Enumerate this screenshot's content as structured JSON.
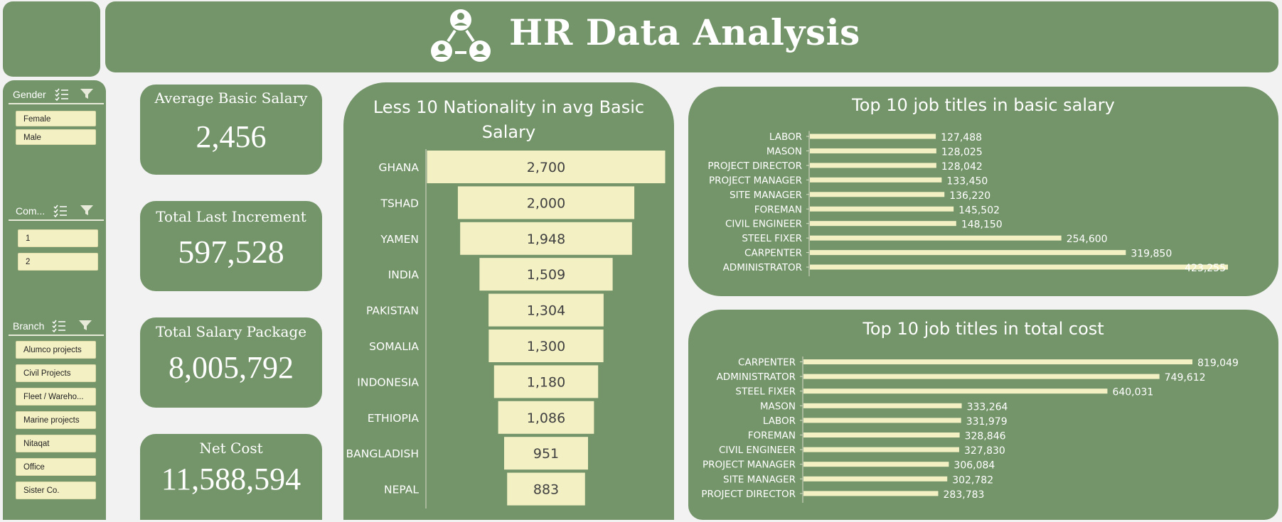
{
  "header": {
    "title": "HR Data Analysis"
  },
  "slicers": {
    "gender": {
      "label": "Gender",
      "items": [
        "Female",
        "Male"
      ]
    },
    "company": {
      "label": "Com...",
      "items": [
        "1",
        "2"
      ]
    },
    "branch": {
      "label": "Branch",
      "items": [
        "Alumco projects",
        "Civil Projects",
        "Fleet / Wareho...",
        "Marine projects",
        "Nitaqat",
        "Office",
        "Sister Co."
      ]
    }
  },
  "kpis": {
    "avg_basic": {
      "label": "Average Basic Salary",
      "value": "2,456"
    },
    "last_increment": {
      "label": "Total Last Increment",
      "value": "597,528"
    },
    "salary_package": {
      "label": "Total Salary Package",
      "value": "8,005,792"
    },
    "net_cost": {
      "label": "Net Cost",
      "value": "11,588,594"
    }
  },
  "colors": {
    "panel": "#74956a",
    "bar": "#f3f0c4",
    "background": "#f2f2f2"
  },
  "chart_data": [
    {
      "type": "bar",
      "subtype": "funnel",
      "title": "Less 10 Nationality in avg Basic Salary",
      "categories": [
        "GHANA",
        "TSHAD",
        "YAMEN",
        "INDIA",
        "PAKISTAN",
        "SOMALIA",
        "INDONESIA",
        "ETHIOPIA",
        "BANGLADISH",
        "NEPAL"
      ],
      "values": [
        2700,
        2000,
        1948,
        1509,
        1304,
        1300,
        1180,
        1086,
        951,
        883
      ],
      "labels": [
        "2,700",
        "2,000",
        "1,948",
        "1,509",
        "1,304",
        "1,300",
        "1,180",
        "1,086",
        "951",
        "883"
      ]
    },
    {
      "type": "bar",
      "orientation": "horizontal",
      "title": "Top 10 job titles in basic salary",
      "categories": [
        "LABOR",
        "MASON",
        "PROJECT DIRECTOR",
        "PROJECT MANAGER",
        "SITE MANAGER",
        "FOREMAN",
        "CIVIL ENGINEER",
        "STEEL FIXER",
        "CARPENTER",
        "ADMINISTRATOR"
      ],
      "values": [
        127488,
        128025,
        128042,
        133450,
        136220,
        145502,
        148150,
        254600,
        319850,
        423255
      ],
      "labels": [
        "127,488",
        "128,025",
        "128,042",
        "133,450",
        "136,220",
        "145,502",
        "148,150",
        "254,600",
        "319,850",
        "423,255"
      ]
    },
    {
      "type": "bar",
      "orientation": "horizontal",
      "title": "Top 10 job titles in total cost",
      "categories": [
        "CARPENTER",
        "ADMINISTRATOR",
        "STEEL FIXER",
        "MASON",
        "LABOR",
        "FOREMAN",
        "CIVIL ENGINEER",
        "PROJECT MANAGER",
        "SITE MANAGER",
        "PROJECT DIRECTOR"
      ],
      "values": [
        819049,
        749612,
        640031,
        333264,
        331979,
        328846,
        327830,
        306084,
        302782,
        283783
      ],
      "labels": [
        "819,049",
        "749,612",
        "640,031",
        "333,264",
        "331,979",
        "328,846",
        "327,830",
        "306,084",
        "302,782",
        "283,783"
      ]
    }
  ]
}
